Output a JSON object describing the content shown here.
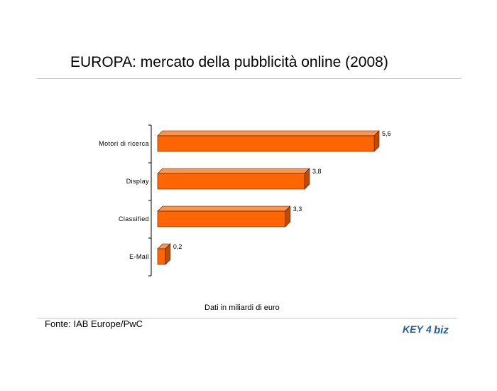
{
  "title": "EUROPA: mercato della pubblicità online (2008)",
  "caption": "Dati in miliardi di euro",
  "source": "Fonte: IAB Europe/PwC",
  "logo": {
    "text_left": "KEY",
    "text_mid": "4",
    "text_right": "biz",
    "color": "#1f5fa6"
  },
  "colors": {
    "bar_front": "#ff6600",
    "bar_top": "#ff944d",
    "bar_side": "#c24a00",
    "bar_outline": "#3a1a00",
    "axis": "#000000"
  },
  "chart_data": {
    "type": "bar",
    "orientation": "horizontal",
    "style": "3d",
    "categories": [
      "Motori di ricerca",
      "Display",
      "Classified",
      "E-Mail"
    ],
    "values": [
      5.6,
      3.8,
      3.3,
      0.2
    ],
    "value_labels": [
      "5,6",
      "3,8",
      "3,3",
      "0,2"
    ],
    "xlim": [
      0,
      5.6
    ],
    "grid": false,
    "legend": "none"
  }
}
